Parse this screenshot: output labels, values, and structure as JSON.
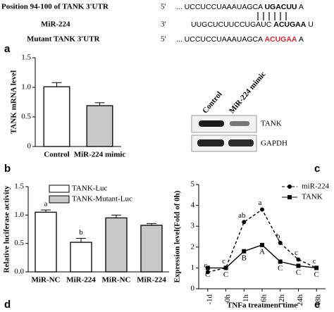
{
  "sequences": [
    {
      "label": "Position 94-100 of TANK 3'UTR",
      "end": "5'",
      "pre": "... UCCUCCUAAAUAGCA ",
      "site": "UGACUU",
      "post": " A"
    },
    {
      "label": "MiR-224",
      "end": "3'",
      "pre": "UUGCUCUUCCUGAUC ",
      "site": "ACUGAA",
      "post": " U"
    },
    {
      "label": "Mutant TANK 3'UTR",
      "end": "5'",
      "pre": "... UCCUCCUAAAUAGCA ",
      "site": "ACUGAA",
      "post": " A"
    }
  ],
  "panels": [
    "a",
    "b",
    "c",
    "d",
    "e"
  ],
  "blot": {
    "lanes": [
      "Control",
      "MiR-224 mimic"
    ],
    "proteins": [
      "TANK",
      "GAPDH"
    ]
  },
  "chart_data": [
    {
      "type": "bar",
      "ylabel": "TANK mRNA level",
      "categories": [
        "Control",
        "MiR-224 mimic"
      ],
      "series": [
        {
          "values": [
            1.01,
            0.69
          ],
          "errors": [
            0.07,
            0.05
          ],
          "colors": [
            "#ffffff",
            "#c8c8c8"
          ]
        }
      ],
      "ylim": [
        0,
        1.5
      ],
      "yticks": [
        0,
        {
          "value": 0.5,
          "label": "0.5"
        },
        {
          "value": 1,
          "label": "1.0"
        },
        {
          "value": 1.5,
          "label": "1.5"
        }
      ]
    },
    {
      "type": "bar",
      "ylabel": "Relative luciferase activity",
      "categories": [
        "MiR-NC",
        "MiR-224",
        "MiR-NC",
        "MiR-224"
      ],
      "series": [
        {
          "name": "TANK-Luc",
          "color": "#ffffff",
          "values": [
            1.05,
            0.52,
            null,
            null
          ],
          "errors": [
            0.04,
            0.07,
            null,
            null
          ],
          "annotations": [
            "a",
            "b",
            null,
            null
          ]
        },
        {
          "name": "TANK-Mutant-Luc",
          "color": "#c8c8c8",
          "values": [
            null,
            null,
            0.95,
            0.82
          ],
          "errors": [
            null,
            null,
            0.05,
            0.03
          ]
        }
      ],
      "ylim": [
        0,
        1.5
      ],
      "yticks": [
        {
          "value": 0,
          "label": "0.0"
        },
        {
          "value": 0.5,
          "label": "0.5"
        },
        {
          "value": 1,
          "label": "1.0"
        },
        {
          "value": 1.5,
          "label": "1.5"
        }
      ]
    },
    {
      "type": "line",
      "ylabel": "Expression level(Fold of 0h)",
      "xlabel": "TNFa treatment time",
      "categories": [
        "-1d",
        "0h",
        "1h",
        "6h",
        "12h",
        "24h",
        "48h"
      ],
      "series": [
        {
          "name": "miR-224",
          "color": "#000000",
          "dashed": true,
          "marker": "circle",
          "values": [
            0.8,
            1.0,
            3.2,
            3.8,
            2.2,
            1.4,
            1.0
          ],
          "annotations": [
            "c",
            "c",
            "ab",
            "a",
            "b",
            "c",
            "c"
          ]
        },
        {
          "name": "TANK",
          "color": "#000000",
          "dashed": false,
          "marker": "square",
          "values": [
            1.0,
            1.0,
            1.8,
            2.1,
            1.3,
            1.1,
            1.0
          ],
          "annotations": [
            "C",
            "C",
            "B",
            "A",
            "C",
            "C",
            "C"
          ]
        }
      ],
      "ylim": [
        0,
        5
      ],
      "yticks": [
        0,
        1,
        2,
        3,
        4,
        5
      ]
    }
  ]
}
